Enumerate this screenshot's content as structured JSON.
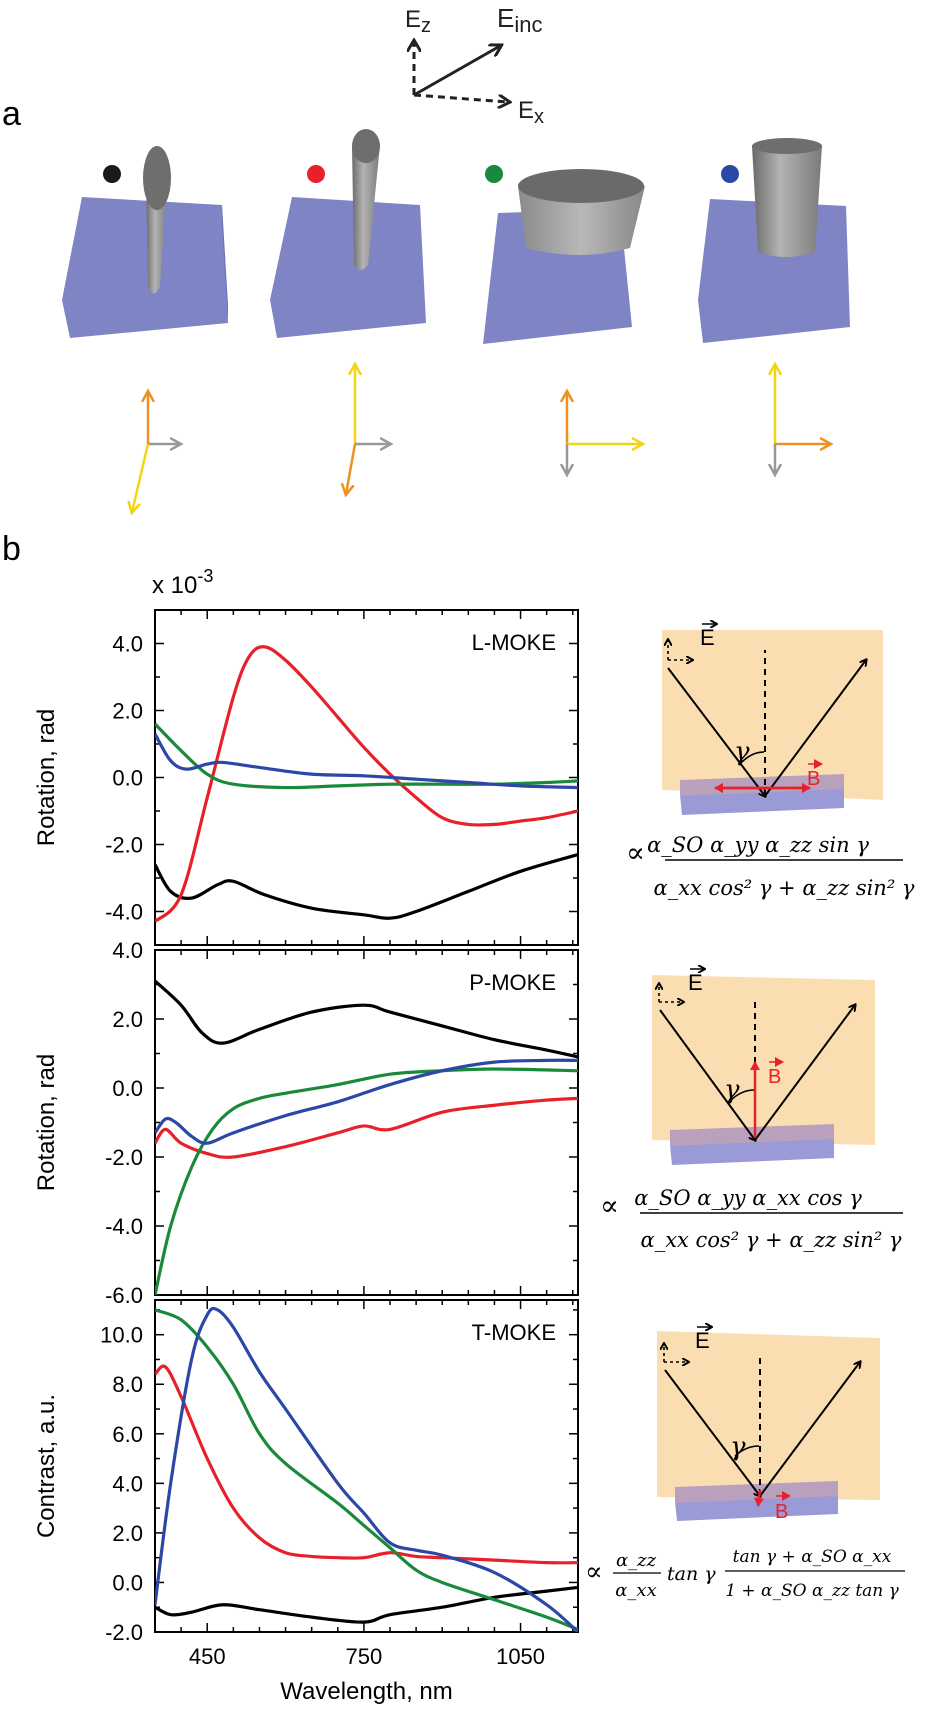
{
  "panel_a": {
    "label": "a",
    "axis_labels": {
      "z": "E",
      "z_sub": "z",
      "inc": "E",
      "inc_sub": "inc",
      "x": "E",
      "x_sub": "x"
    },
    "marker_colors": [
      "#1a1a1a",
      "#e8202a",
      "#1a8a3a",
      "#2c48a6"
    ],
    "substrate_color": "#7f84c4"
  },
  "panel_b": {
    "label": "b",
    "multiplier": "x 10",
    "multiplier_exp": "-3",
    "diagram_labels": {
      "e": "E",
      "b": "B",
      "gamma": "γ"
    }
  },
  "formulas": {
    "l_num": "α_SO α_yy α_zz sin γ",
    "l_den": "α_xx cos² γ + α_zz sin² γ",
    "p_num": "α_SO α_yy α_xx cos γ",
    "p_den": "α_xx cos² γ + α_zz sin² γ",
    "t_frac1_num": "α_zz",
    "t_frac1_den": "α_xx",
    "t_tan": "tan γ",
    "t_frac2_num": "tan γ + α_SO α_xx",
    "t_frac2_den": "1 + α_SO α_zz tan γ",
    "prop": "∝"
  },
  "chart_data": [
    {
      "type": "line",
      "title": "L-MOKE",
      "xlabel": "",
      "ylabel": "Rotation, rad",
      "xlim": [
        350,
        1160
      ],
      "ylim": [
        -5.0,
        5.0
      ],
      "yticks": [
        "4.0",
        "2.0",
        "0.0",
        "-2.0",
        "-4.0"
      ],
      "ytick_values": [
        4,
        2,
        0,
        -2,
        -4
      ],
      "series": [
        {
          "name": "black",
          "color": "#000000",
          "x": [
            350,
            380,
            420,
            470,
            500,
            560,
            650,
            750,
            800,
            850,
            950,
            1050,
            1160
          ],
          "y": [
            -2.6,
            -3.4,
            -3.6,
            -3.2,
            -3.1,
            -3.5,
            -3.9,
            -4.1,
            -4.2,
            -4.0,
            -3.4,
            -2.8,
            -2.3
          ]
        },
        {
          "name": "red",
          "color": "#e8202a",
          "x": [
            350,
            400,
            450,
            500,
            530,
            560,
            600,
            650,
            700,
            750,
            800,
            850,
            900,
            950,
            1000,
            1050,
            1100,
            1160
          ],
          "y": [
            -4.3,
            -3.5,
            -0.6,
            2.4,
            3.6,
            3.9,
            3.5,
            2.7,
            1.8,
            0.9,
            0.1,
            -0.6,
            -1.2,
            -1.4,
            -1.4,
            -1.3,
            -1.2,
            -1.0
          ]
        },
        {
          "name": "green",
          "color": "#1a8a3a",
          "x": [
            350,
            400,
            450,
            500,
            600,
            700,
            800,
            900,
            1000,
            1100,
            1160
          ],
          "y": [
            1.6,
            0.8,
            0.1,
            -0.2,
            -0.3,
            -0.25,
            -0.2,
            -0.2,
            -0.2,
            -0.15,
            -0.1
          ]
        },
        {
          "name": "blue",
          "color": "#2c48a6",
          "x": [
            350,
            380,
            410,
            450,
            480,
            550,
            650,
            750,
            850,
            950,
            1050,
            1160
          ],
          "y": [
            1.3,
            0.5,
            0.25,
            0.4,
            0.45,
            0.3,
            0.1,
            0.05,
            -0.05,
            -0.15,
            -0.25,
            -0.3
          ]
        }
      ]
    },
    {
      "type": "line",
      "title": "P-MOKE",
      "xlabel": "",
      "ylabel": "Rotation, rad",
      "xlim": [
        350,
        1160
      ],
      "ylim": [
        -6.0,
        4.0
      ],
      "yticks": [
        "4.0",
        "2.0",
        "0.0",
        "-2.0",
        "-4.0",
        "-6.0"
      ],
      "ytick_values": [
        4,
        2,
        0,
        -2,
        -4,
        -6
      ],
      "series": [
        {
          "name": "black",
          "color": "#000000",
          "x": [
            350,
            400,
            440,
            480,
            550,
            650,
            750,
            800,
            900,
            1000,
            1100,
            1160
          ],
          "y": [
            3.1,
            2.4,
            1.6,
            1.3,
            1.7,
            2.2,
            2.4,
            2.2,
            1.8,
            1.4,
            1.1,
            0.9
          ]
        },
        {
          "name": "red",
          "color": "#e8202a",
          "x": [
            350,
            370,
            400,
            450,
            500,
            600,
            700,
            750,
            800,
            900,
            1000,
            1100,
            1160
          ],
          "y": [
            -1.6,
            -1.2,
            -1.6,
            -1.9,
            -2.0,
            -1.7,
            -1.3,
            -1.1,
            -1.2,
            -0.7,
            -0.5,
            -0.35,
            -0.3
          ]
        },
        {
          "name": "green",
          "color": "#1a8a3a",
          "x": [
            350,
            380,
            420,
            460,
            500,
            550,
            600,
            700,
            800,
            900,
            1000,
            1160
          ],
          "y": [
            -6.0,
            -4.0,
            -2.3,
            -1.2,
            -0.6,
            -0.3,
            -0.15,
            0.1,
            0.4,
            0.5,
            0.55,
            0.5
          ]
        },
        {
          "name": "blue",
          "color": "#2c48a6",
          "x": [
            350,
            370,
            390,
            420,
            450,
            500,
            600,
            700,
            800,
            900,
            1000,
            1100,
            1160
          ],
          "y": [
            -1.3,
            -0.9,
            -1.0,
            -1.4,
            -1.6,
            -1.3,
            -0.8,
            -0.4,
            0.1,
            0.5,
            0.75,
            0.8,
            0.8
          ]
        }
      ]
    },
    {
      "type": "line",
      "title": "T-MOKE",
      "xlabel": "Wavelength, nm",
      "ylabel": "Contrast, a.u.",
      "xlim": [
        350,
        1160
      ],
      "ylim": [
        -2.0,
        11.4
      ],
      "yticks": [
        "10.0",
        "8.0",
        "6.0",
        "4.0",
        "2.0",
        "0.0",
        "-2.0"
      ],
      "ytick_values": [
        10,
        8,
        6,
        4,
        2,
        0,
        -2
      ],
      "xticks": [
        "450",
        "750",
        "1050"
      ],
      "xtick_values": [
        450,
        750,
        1050
      ],
      "series": [
        {
          "name": "black",
          "color": "#000000",
          "x": [
            350,
            380,
            420,
            480,
            550,
            650,
            750,
            800,
            900,
            1000,
            1100,
            1160
          ],
          "y": [
            -1.0,
            -1.3,
            -1.2,
            -0.9,
            -1.1,
            -1.4,
            -1.6,
            -1.3,
            -1.0,
            -0.6,
            -0.35,
            -0.2
          ]
        },
        {
          "name": "red",
          "color": "#e8202a",
          "x": [
            350,
            370,
            400,
            450,
            500,
            550,
            600,
            650,
            700,
            750,
            800,
            850,
            900,
            1000,
            1100,
            1160
          ],
          "y": [
            8.4,
            8.7,
            7.5,
            5.0,
            3.0,
            1.8,
            1.2,
            1.05,
            1.0,
            1.0,
            1.2,
            1.05,
            1.0,
            0.9,
            0.8,
            0.8
          ]
        },
        {
          "name": "green",
          "color": "#1a8a3a",
          "x": [
            350,
            400,
            450,
            500,
            550,
            600,
            700,
            750,
            800,
            850,
            900,
            1000,
            1100,
            1160
          ],
          "y": [
            11.0,
            10.6,
            9.5,
            8.0,
            6.0,
            4.8,
            3.2,
            2.3,
            1.4,
            0.5,
            0.0,
            -0.7,
            -1.4,
            -1.9
          ]
        },
        {
          "name": "blue",
          "color": "#2c48a6",
          "x": [
            350,
            380,
            420,
            450,
            470,
            500,
            550,
            600,
            700,
            750,
            800,
            850,
            900,
            1000,
            1100,
            1160
          ],
          "y": [
            -0.9,
            4.0,
            9.0,
            10.8,
            11.0,
            10.3,
            8.5,
            7.0,
            4.0,
            2.8,
            1.6,
            1.3,
            1.1,
            0.4,
            -0.9,
            -2.0
          ]
        }
      ]
    }
  ]
}
